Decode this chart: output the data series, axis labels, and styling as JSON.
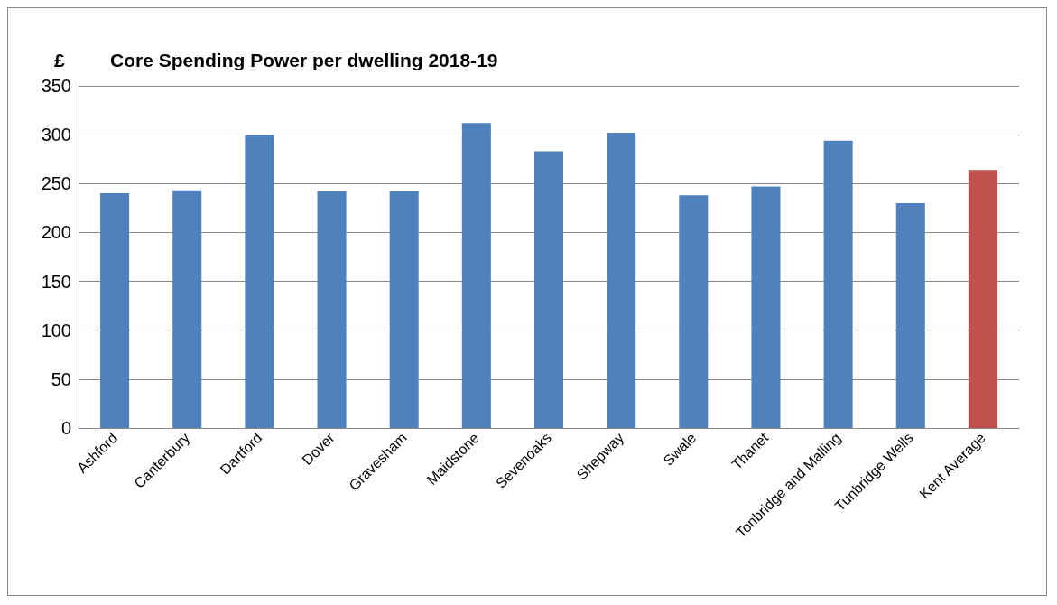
{
  "chart_data": {
    "type": "bar",
    "title": "Core Spending Power per dwelling 2018-19",
    "ylabel": "£",
    "categories": [
      "Ashford",
      "Canterbury",
      "Dartford",
      "Dover",
      "Gravesham",
      "Maidstone",
      "Sevenoaks",
      "Shepway",
      "Swale",
      "Thanet",
      "Tonbridge and Malling",
      "Tunbridge Wells",
      "Kent Average"
    ],
    "values": [
      240,
      243,
      300,
      242,
      242,
      312,
      283,
      302,
      238,
      247,
      294,
      230,
      264
    ],
    "colors": [
      "#4f81bd",
      "#4f81bd",
      "#4f81bd",
      "#4f81bd",
      "#4f81bd",
      "#4f81bd",
      "#4f81bd",
      "#4f81bd",
      "#4f81bd",
      "#4f81bd",
      "#4f81bd",
      "#4f81bd",
      "#c0504d"
    ],
    "ylim": [
      0,
      350
    ],
    "yticks": [
      0,
      50,
      100,
      150,
      200,
      250,
      300,
      350
    ],
    "grid": "y"
  }
}
